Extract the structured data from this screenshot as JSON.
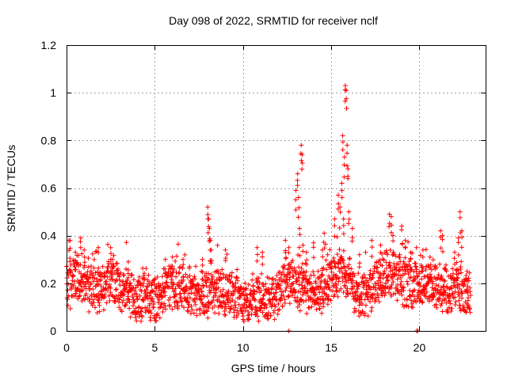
{
  "chart_data": {
    "type": "scatter",
    "title": "Day 098 of 2022, SRMTID for receiver nclf",
    "xlabel": "GPS time / hours",
    "ylabel": "SRMTID / TECUs",
    "xlim": [
      0,
      23.75
    ],
    "ylim": [
      0,
      1.2
    ],
    "xticks": [
      0,
      5,
      10,
      15,
      20
    ],
    "xtick_labels": [
      "0",
      "5",
      "10",
      "15",
      "20"
    ],
    "yticks": [
      0,
      0.2,
      0.4,
      0.6,
      0.8,
      1.0,
      1.2
    ],
    "ytick_labels": [
      "0",
      "0.2",
      "0.4",
      "0.6",
      "0.8",
      "1",
      "1.2"
    ],
    "grid": true,
    "marker": "+",
    "series": [
      {
        "name": "SRMTID",
        "color": "#ff0000",
        "baseline_profile": [
          [
            0.0,
            0.18
          ],
          [
            0.5,
            0.22
          ],
          [
            1.0,
            0.19
          ],
          [
            1.5,
            0.18
          ],
          [
            2.0,
            0.17
          ],
          [
            2.5,
            0.22
          ],
          [
            3.0,
            0.18
          ],
          [
            3.5,
            0.15
          ],
          [
            4.0,
            0.14
          ],
          [
            4.5,
            0.14
          ],
          [
            5.0,
            0.13
          ],
          [
            5.5,
            0.17
          ],
          [
            6.0,
            0.2
          ],
          [
            6.5,
            0.18
          ],
          [
            7.0,
            0.17
          ],
          [
            7.5,
            0.15
          ],
          [
            8.0,
            0.16
          ],
          [
            8.5,
            0.17
          ],
          [
            9.0,
            0.15
          ],
          [
            9.5,
            0.14
          ],
          [
            10.0,
            0.12
          ],
          [
            10.5,
            0.12
          ],
          [
            11.0,
            0.14
          ],
          [
            11.5,
            0.13
          ],
          [
            12.0,
            0.15
          ],
          [
            12.5,
            0.22
          ],
          [
            13.0,
            0.2
          ],
          [
            13.5,
            0.17
          ],
          [
            14.0,
            0.16
          ],
          [
            14.5,
            0.18
          ],
          [
            15.0,
            0.22
          ],
          [
            15.5,
            0.26
          ],
          [
            16.0,
            0.22
          ],
          [
            16.5,
            0.14
          ],
          [
            17.0,
            0.15
          ],
          [
            17.5,
            0.2
          ],
          [
            18.0,
            0.24
          ],
          [
            18.5,
            0.23
          ],
          [
            19.0,
            0.21
          ],
          [
            19.5,
            0.19
          ],
          [
            20.0,
            0.2
          ],
          [
            20.5,
            0.18
          ],
          [
            21.0,
            0.2
          ],
          [
            21.5,
            0.16
          ],
          [
            22.0,
            0.19
          ],
          [
            22.5,
            0.15
          ],
          [
            22.9,
            0.17
          ]
        ],
        "outliers": [
          [
            0.2,
            0.38
          ],
          [
            0.5,
            0.33
          ],
          [
            0.8,
            0.39
          ],
          [
            1.0,
            0.34
          ],
          [
            1.8,
            0.35
          ],
          [
            2.5,
            0.35
          ],
          [
            2.6,
            0.3
          ],
          [
            3.5,
            0.29
          ],
          [
            5.6,
            0.3
          ],
          [
            6.0,
            0.31
          ],
          [
            6.6,
            0.3
          ],
          [
            7.7,
            0.3
          ],
          [
            8.0,
            0.52
          ],
          [
            8.05,
            0.47
          ],
          [
            8.1,
            0.43
          ],
          [
            8.15,
            0.38
          ],
          [
            8.2,
            0.34
          ],
          [
            9.0,
            0.34
          ],
          [
            10.8,
            0.35
          ],
          [
            11.1,
            0.33
          ],
          [
            12.4,
            0.38
          ],
          [
            12.6,
            0.35
          ],
          [
            13.0,
            0.59
          ],
          [
            13.1,
            0.66
          ],
          [
            13.15,
            0.56
          ],
          [
            13.3,
            0.78
          ],
          [
            13.35,
            0.74
          ],
          [
            13.2,
            0.43
          ],
          [
            13.4,
            0.36
          ],
          [
            13.6,
            0.33
          ],
          [
            14.0,
            0.37
          ],
          [
            14.5,
            0.34
          ],
          [
            14.6,
            0.41
          ],
          [
            14.8,
            0.32
          ],
          [
            15.2,
            0.47
          ],
          [
            15.4,
            0.57
          ],
          [
            15.5,
            0.52
          ],
          [
            15.6,
            0.62
          ],
          [
            15.65,
            0.82
          ],
          [
            15.75,
            0.73
          ],
          [
            15.8,
            1.03
          ],
          [
            15.85,
            1.01
          ],
          [
            15.9,
            0.78
          ],
          [
            15.95,
            0.68
          ],
          [
            15.7,
            0.47
          ],
          [
            16.0,
            0.5
          ],
          [
            16.2,
            0.43
          ],
          [
            16.6,
            0.32
          ],
          [
            17.3,
            0.38
          ],
          [
            17.8,
            0.36
          ],
          [
            18.3,
            0.49
          ],
          [
            18.4,
            0.48
          ],
          [
            18.5,
            0.4
          ],
          [
            19.0,
            0.44
          ],
          [
            19.2,
            0.38
          ],
          [
            19.5,
            0.33
          ],
          [
            20.2,
            0.34
          ],
          [
            20.6,
            0.31
          ],
          [
            21.2,
            0.42
          ],
          [
            21.3,
            0.4
          ],
          [
            22.0,
            0.33
          ],
          [
            22.2,
            0.39
          ],
          [
            22.3,
            0.5
          ],
          [
            22.4,
            0.42
          ],
          [
            22.7,
            0.25
          ]
        ],
        "low_markers": [
          [
            12.6,
            0.0
          ],
          [
            19.85,
            0.0
          ],
          [
            19.9,
            0.0
          ]
        ]
      }
    ]
  }
}
